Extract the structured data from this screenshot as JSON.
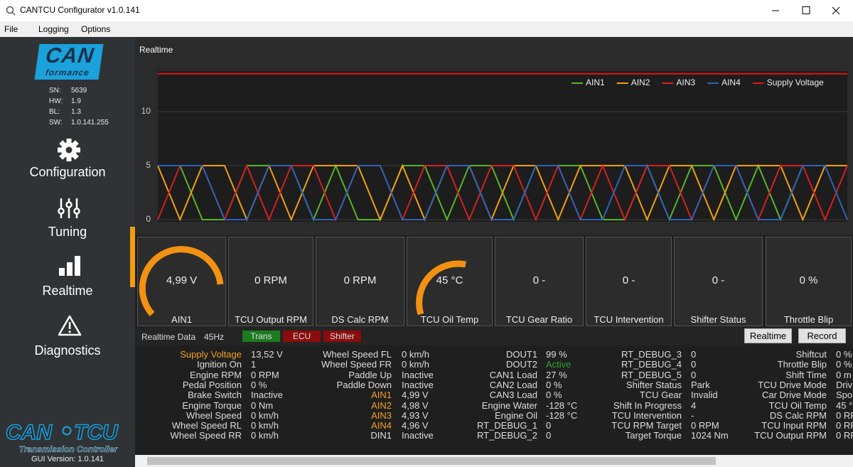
{
  "window": {
    "title": "CANTCU Configurator v1.0.141"
  },
  "menu": [
    "File",
    "Logging",
    "Options"
  ],
  "sidebar": {
    "logo_top": "CAN",
    "logo_bottom": "formance",
    "info": [
      [
        "SN:",
        "5639"
      ],
      [
        "HW:",
        "1.9"
      ],
      [
        "BL:",
        "1.3"
      ],
      [
        "SW:",
        "1.0.141.255"
      ]
    ],
    "nav": [
      {
        "label": "Configuration"
      },
      {
        "label": "Tuning"
      },
      {
        "label": "Realtime",
        "active": true
      },
      {
        "label": "Diagnostics"
      }
    ],
    "footer_logo_left": "CAN",
    "footer_logo_right": "TCU",
    "footer_subtitle": "Transmission Controller",
    "gui_version": "GUI Version: 1.0.141"
  },
  "chart_data": {
    "type": "line",
    "title": "Realtime",
    "ylim": [
      -0.2,
      13.75
    ],
    "yticks": [
      0,
      5,
      10
    ],
    "grid": true,
    "legend": "top-right",
    "series": [
      {
        "name": "AIN1",
        "color": "#58b42a",
        "values": [
          5,
          5,
          0,
          0,
          5,
          5,
          5,
          0,
          5,
          0,
          0,
          5,
          5,
          0,
          5,
          5,
          0,
          5,
          5,
          5,
          0,
          0,
          5,
          0,
          5,
          5,
          0,
          5,
          0,
          5,
          5,
          5
        ]
      },
      {
        "name": "AIN2",
        "color": "#f0a010",
        "values": [
          5,
          0,
          5,
          5,
          0,
          5,
          0,
          5,
          5,
          5,
          0,
          5,
          0,
          5,
          5,
          0,
          5,
          5,
          0,
          5,
          5,
          5,
          0,
          5,
          5,
          0,
          5,
          5,
          5,
          0,
          5,
          5
        ]
      },
      {
        "name": "AIN3",
        "color": "#d42020",
        "values": [
          0,
          5,
          5,
          0,
          5,
          0,
          5,
          5,
          0,
          5,
          5,
          0,
          5,
          5,
          0,
          5,
          5,
          0,
          5,
          0,
          5,
          0,
          5,
          5,
          0,
          5,
          5,
          0,
          5,
          5,
          0,
          5
        ]
      },
      {
        "name": "AIN4",
        "color": "#2f62b8",
        "values": [
          5,
          5,
          5,
          0,
          0,
          5,
          5,
          0,
          0,
          5,
          5,
          0,
          0,
          5,
          5,
          0,
          0,
          5,
          5,
          0,
          0,
          5,
          5,
          0,
          0,
          5,
          5,
          0,
          0,
          5,
          5,
          0
        ]
      },
      {
        "name": "Supply Voltage",
        "color": "#e01414",
        "values": [
          13.5,
          13.5,
          13.5,
          13.5,
          13.5,
          13.5,
          13.5,
          13.5,
          13.5,
          13.5,
          13.5,
          13.5,
          13.5,
          13.5,
          13.5,
          13.5,
          13.5,
          13.5,
          13.5,
          13.5,
          13.5,
          13.5,
          13.5,
          13.5,
          13.5,
          13.5,
          13.5,
          13.5,
          13.5,
          13.5,
          13.5,
          13.5
        ]
      }
    ]
  },
  "gauges": [
    {
      "value": "4,99 V",
      "label": "AIN1"
    },
    {
      "value": "0 RPM",
      "label": "TCU Output RPM"
    },
    {
      "value": "0 RPM",
      "label": "DS Calc RPM"
    },
    {
      "value": "45 °C",
      "label": "TCU Oil Temp"
    },
    {
      "value": "0 -",
      "label": "TCU Gear Ratio"
    },
    {
      "value": "0 -",
      "label": "TCU Intervention"
    },
    {
      "value": "0 -",
      "label": "Shifter Status"
    },
    {
      "value": "0 %",
      "label": "Throttle Blip"
    }
  ],
  "status_bar": {
    "label": "Realtime Data",
    "rate": "45Hz",
    "badges": [
      {
        "text": "Trans",
        "color": "#1d7a21"
      },
      {
        "text": "ECU",
        "color": "#8a0c0c"
      },
      {
        "text": "Shifter",
        "color": "#8a0c0c"
      }
    ],
    "buttons": [
      "Realtime",
      "Record"
    ]
  },
  "data_table": [
    [
      [
        "Supply Voltage",
        "13,52 V",
        "#f0a020"
      ],
      [
        "Ignition On",
        "1"
      ],
      [
        "Engine RPM",
        "0 RPM"
      ],
      [
        "Pedal Position",
        "0 %"
      ],
      [
        "Brake Switch",
        "Inactive"
      ],
      [
        "Engine Torque",
        "0 Nm"
      ],
      [
        "Wheel Speed",
        "0 km/h"
      ],
      [
        "Wheel Speed RL",
        "0 km/h"
      ],
      [
        "Wheel Speed RR",
        "0 km/h"
      ]
    ],
    [
      [
        "Wheel Speed FL",
        "0 km/h"
      ],
      [
        "Wheel Speed FR",
        "0 km/h"
      ],
      [
        "Paddle Up",
        "Inactive"
      ],
      [
        "Paddle Down",
        "Inactive"
      ],
      [
        "AIN1",
        "4,99 V",
        "#f0a020"
      ],
      [
        "AIN2",
        "4,98 V",
        "#f0a020"
      ],
      [
        "AIN3",
        "4,93 V",
        "#f0a020"
      ],
      [
        "AIN4",
        "4,96 V",
        "#f0a020"
      ],
      [
        "DIN1",
        "Inactive"
      ]
    ],
    [
      [
        "DOUT1",
        "99 %"
      ],
      [
        "DOUT2",
        "Active",
        null,
        "#2ea02e"
      ],
      [
        "CAN1 Load",
        "27 %"
      ],
      [
        "CAN2 Load",
        "0 %"
      ],
      [
        "CAN3 Load",
        "0 %"
      ],
      [
        "Engine Water",
        "-128 °C"
      ],
      [
        "Engine Oil",
        "-128 °C"
      ],
      [
        "RT_DEBUG_1",
        "0"
      ],
      [
        "RT_DEBUG_2",
        "0"
      ]
    ],
    [
      [
        "RT_DEBUG_3",
        "0"
      ],
      [
        "RT_DEBUG_4",
        "0"
      ],
      [
        "RT_DEBUG_5",
        "0"
      ],
      [
        "Shifter Status",
        "Park"
      ],
      [
        "TCU Gear",
        "Invalid"
      ],
      [
        "Shift In Progress",
        "4"
      ],
      [
        "TCU Intervention",
        "-"
      ],
      [
        "TCU RPM Target",
        "0 RPM"
      ],
      [
        "Target Torque",
        "1024 Nm"
      ]
    ],
    [
      [
        "Shiftcut",
        "0 %"
      ],
      [
        "Throttle Blip",
        "0 %"
      ],
      [
        "Shift Time",
        "0 m"
      ],
      [
        "TCU Drive Mode",
        "Driv"
      ],
      [
        "Car Drive Mode",
        "Spo"
      ],
      [
        "TCU Oil Temp",
        "45 °"
      ],
      [
        "DS Calc RPM",
        "0 RP"
      ],
      [
        "TCU Input RPM",
        "0 RP"
      ],
      [
        "TCU Output RPM",
        "0 RP"
      ]
    ]
  ]
}
